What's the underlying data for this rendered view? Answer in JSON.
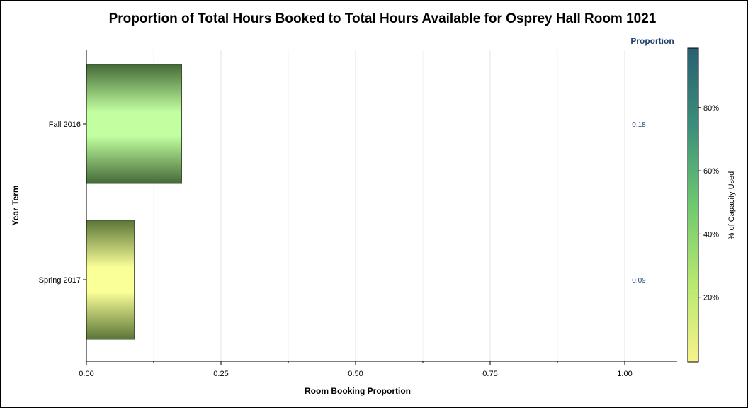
{
  "chart_data": {
    "type": "bar",
    "orientation": "horizontal",
    "title": "Proportion of Total Hours Booked to Total Hours Available for Osprey Hall Room 1021",
    "xlabel": "Room Booking Proportion",
    "ylabel": "Year Term",
    "categories": [
      "Fall 2016",
      "Spring 2017"
    ],
    "values": [
      0.177,
      0.089
    ],
    "value_labels": [
      "0.18",
      "0.09"
    ],
    "value_column_header": "Proportion",
    "xlim": [
      0,
      1.1
    ],
    "x_ticks": [
      0,
      0.25,
      0.5,
      0.75,
      1.0
    ],
    "x_tick_labels": [
      "0.00",
      "0.25",
      "0.50",
      "0.75",
      "1.00"
    ],
    "grid": true,
    "colorbar": {
      "label": "% of Capacity Used",
      "range": [
        0,
        100
      ],
      "ticks": [
        20,
        40,
        60,
        80
      ],
      "tick_labels": [
        "20%",
        "40%",
        "60%",
        "80%"
      ],
      "colors": [
        "#f6f28a",
        "#b8e870",
        "#6fc870",
        "#3b8f7a",
        "#2a5f72"
      ]
    },
    "bar_colors": [
      {
        "edge": "#456a38",
        "center": "#c2ffa0"
      },
      {
        "edge": "#5b7638",
        "center": "#fbff98"
      }
    ]
  }
}
